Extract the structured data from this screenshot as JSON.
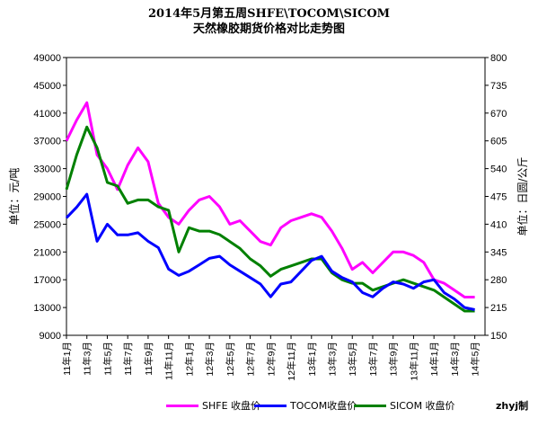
{
  "title_line1": "2014年5月第五周SHFE\\TOCOM\\SICOM",
  "title_line2": "天然橡胶期货价格对比走势图",
  "credit": "zhyj制",
  "colors": {
    "shfe": "#ff00ff",
    "tocom": "#0000ff",
    "sicom": "#008000"
  },
  "chart_data": {
    "type": "line",
    "title": "2014年5月第五周SHFE\\TOCOM\\SICOM 天然橡胶期货价格对比走势图",
    "ylabel": "单位：元/吨",
    "y2label": "单位：日圆/公斤",
    "ylim": [
      9000,
      49000
    ],
    "y2lim": [
      150,
      800
    ],
    "yticks": [
      "9000",
      "13000",
      "17000",
      "21000",
      "25000",
      "29000",
      "33000",
      "37000",
      "41000",
      "45000",
      "49000"
    ],
    "y2ticks": [
      "150",
      "215",
      "280",
      "345",
      "410",
      "475",
      "540",
      "605",
      "670",
      "735",
      "800"
    ],
    "x_start": "2011-01",
    "x_end": "2014-06",
    "xticks": [
      "11年1月",
      "11年3月",
      "11年5月",
      "11年7月",
      "11年9月",
      "11年11月",
      "12年1月",
      "12年3月",
      "12年5月",
      "12年7月",
      "12年9月",
      "12年11月",
      "13年1月",
      "13年3月",
      "13年5月",
      "13年7月",
      "13年9月",
      "13年11月",
      "14年1月",
      "14年3月",
      "14年5月"
    ],
    "grid": false,
    "legend_position": "bottom",
    "series": [
      {
        "name": "SHFE 收盘价",
        "axis": "left",
        "x": [
          "2011-01",
          "2011-02",
          "2011-03",
          "2011-04",
          "2011-05",
          "2011-06",
          "2011-07",
          "2011-08",
          "2011-09",
          "2011-10",
          "2011-11",
          "2011-12",
          "2012-01",
          "2012-02",
          "2012-03",
          "2012-04",
          "2012-05",
          "2012-06",
          "2012-07",
          "2012-08",
          "2012-09",
          "2012-10",
          "2012-11",
          "2012-12",
          "2013-01",
          "2013-02",
          "2013-03",
          "2013-04",
          "2013-05",
          "2013-06",
          "2013-07",
          "2013-08",
          "2013-09",
          "2013-10",
          "2013-11",
          "2013-12",
          "2014-01",
          "2014-02",
          "2014-03",
          "2014-04",
          "2014-05"
        ],
        "values": [
          37000,
          40000,
          42500,
          35000,
          33000,
          30000,
          33500,
          36000,
          34000,
          28000,
          26000,
          25000,
          27000,
          28500,
          29000,
          27500,
          25000,
          25500,
          24000,
          22500,
          22000,
          24500,
          25500,
          26000,
          26500,
          26000,
          24000,
          21500,
          18500,
          19500,
          18000,
          19500,
          21000,
          21000,
          20500,
          19500,
          17000,
          16500,
          15500,
          14500,
          14500
        ]
      },
      {
        "name": "TOCOM 收盘价",
        "axis": "right",
        "x": [
          "2011-01",
          "2011-02",
          "2011-03",
          "2011-04",
          "2011-05",
          "2011-06",
          "2011-07",
          "2011-08",
          "2011-09",
          "2011-10",
          "2011-11",
          "2011-12",
          "2012-01",
          "2012-02",
          "2012-03",
          "2012-04",
          "2012-05",
          "2012-06",
          "2012-07",
          "2012-08",
          "2012-09",
          "2012-10",
          "2012-11",
          "2012-12",
          "2013-01",
          "2013-02",
          "2013-03",
          "2013-04",
          "2013-05",
          "2013-06",
          "2013-07",
          "2013-08",
          "2013-09",
          "2013-10",
          "2013-11",
          "2013-12",
          "2014-01",
          "2014-02",
          "2014-03",
          "2014-04",
          "2014-05"
        ],
        "values": [
          425,
          450,
          480,
          370,
          410,
          385,
          385,
          390,
          370,
          355,
          305,
          290,
          300,
          315,
          330,
          335,
          315,
          300,
          285,
          270,
          240,
          270,
          275,
          300,
          325,
          335,
          300,
          285,
          275,
          250,
          240,
          260,
          275,
          270,
          260,
          275,
          280,
          250,
          235,
          215,
          210
        ]
      },
      {
        "name": "SICOM 收盘价",
        "axis": "left",
        "x": [
          "2011-01",
          "2011-02",
          "2011-03",
          "2011-04",
          "2011-05",
          "2011-06",
          "2011-07",
          "2011-08",
          "2011-09",
          "2011-10",
          "2011-11",
          "2011-12",
          "2012-01",
          "2012-02",
          "2012-03",
          "2012-04",
          "2012-05",
          "2012-06",
          "2012-07",
          "2012-08",
          "2012-09",
          "2012-10",
          "2012-11",
          "2012-12",
          "2013-01",
          "2013-02",
          "2013-03",
          "2013-04",
          "2013-05",
          "2013-06",
          "2013-07",
          "2013-08",
          "2013-09",
          "2013-10",
          "2013-11",
          "2013-12",
          "2014-01",
          "2014-02",
          "2014-03",
          "2014-04",
          "2014-05"
        ],
        "values": [
          30000,
          35000,
          39000,
          36000,
          31000,
          30500,
          28000,
          28500,
          28500,
          27500,
          27000,
          21000,
          24500,
          24000,
          24000,
          23500,
          22500,
          21500,
          20000,
          19000,
          17500,
          18500,
          19000,
          19500,
          20000,
          20000,
          18000,
          17000,
          16500,
          16500,
          15500,
          16000,
          16500,
          17000,
          16500,
          16000,
          15500,
          14500,
          13500,
          12500,
          12500
        ]
      }
    ]
  },
  "legend": [
    {
      "label": "SHFE 收盘价",
      "color_key": "shfe"
    },
    {
      "label": "TOCOM收盘价",
      "color_key": "tocom"
    },
    {
      "label": "SICOM 收盘价",
      "color_key": "sicom"
    }
  ]
}
